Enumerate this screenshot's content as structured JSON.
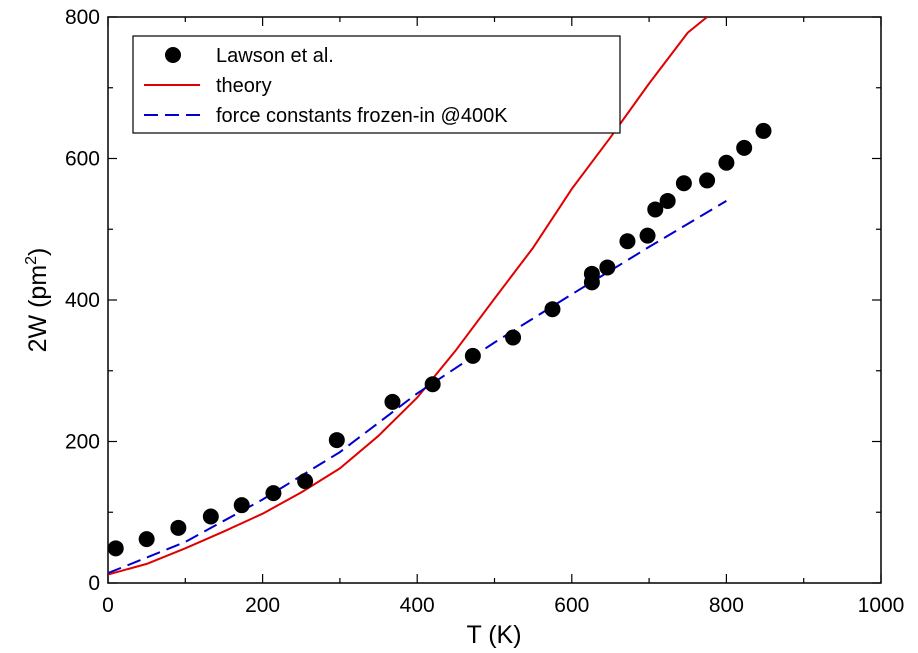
{
  "chart_data": {
    "type": "scatter",
    "xlabel": "T  (K)",
    "ylabel_main": "2W  (pm",
    "ylabel_sup": "2",
    "ylabel_close": ")",
    "xlim": [
      0,
      1000
    ],
    "ylim": [
      0,
      800
    ],
    "x_ticks": [
      0,
      200,
      400,
      600,
      800,
      1000
    ],
    "y_ticks": [
      0,
      200,
      400,
      600,
      800
    ],
    "x_tick_labels": [
      "0",
      "200",
      "400",
      "600",
      "800",
      "1000"
    ],
    "y_tick_labels": [
      "0",
      "200",
      "400",
      "600",
      "800"
    ],
    "grid": false,
    "legend_position": "top-left",
    "series": [
      {
        "name": "Lawson et al.",
        "kind": "markers",
        "color": "#000000",
        "points": [
          [
            10,
            49
          ],
          [
            50,
            62
          ],
          [
            91,
            78
          ],
          [
            133,
            94
          ],
          [
            173,
            110
          ],
          [
            214,
            127
          ],
          [
            255,
            144
          ],
          [
            296,
            202
          ],
          [
            368,
            256
          ],
          [
            420,
            281
          ],
          [
            472,
            321
          ],
          [
            524,
            347
          ],
          [
            575,
            387
          ],
          [
            626,
            425
          ],
          [
            626,
            437
          ],
          [
            646,
            446
          ],
          [
            672,
            483
          ],
          [
            698,
            491
          ],
          [
            708,
            528
          ],
          [
            724,
            540
          ],
          [
            745,
            565
          ],
          [
            775,
            569
          ],
          [
            800,
            594
          ],
          [
            823,
            615
          ],
          [
            848,
            639
          ]
        ]
      },
      {
        "name": "theory",
        "kind": "solid-line",
        "color": "#e00000",
        "points": [
          [
            0,
            12
          ],
          [
            50,
            27
          ],
          [
            100,
            49
          ],
          [
            150,
            73
          ],
          [
            200,
            98
          ],
          [
            250,
            128
          ],
          [
            300,
            162
          ],
          [
            350,
            208
          ],
          [
            400,
            262
          ],
          [
            450,
            329
          ],
          [
            500,
            402
          ],
          [
            550,
            474
          ],
          [
            600,
            557
          ],
          [
            650,
            630
          ],
          [
            700,
            706
          ],
          [
            750,
            778
          ],
          [
            775,
            800
          ]
        ]
      },
      {
        "name": "force constants frozen-in @400K",
        "kind": "dashed-line",
        "color": "#0000cc",
        "points": [
          [
            0,
            14
          ],
          [
            100,
            58
          ],
          [
            200,
            118
          ],
          [
            300,
            185
          ],
          [
            400,
            268
          ],
          [
            500,
            340
          ],
          [
            600,
            408
          ],
          [
            700,
            475
          ],
          [
            800,
            540
          ]
        ]
      }
    ]
  }
}
